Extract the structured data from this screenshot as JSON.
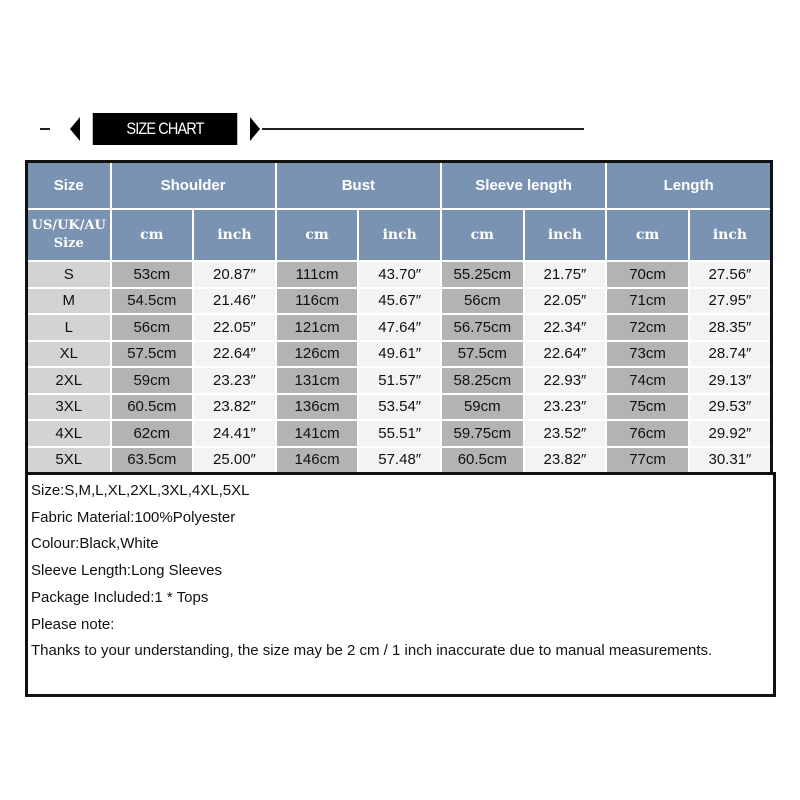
{
  "banner": {
    "title": "SIZE CHART"
  },
  "header": {
    "groups": [
      "Size",
      "Shoulder",
      "Bust",
      "Sleeve length",
      "Length"
    ],
    "size_sub": "US/UK/AU Size",
    "unit_cm": "cm",
    "unit_inch": "inch"
  },
  "rows": [
    [
      "S",
      "53cm",
      "20.87″",
      "111cm",
      "43.70″",
      "55.25cm",
      "21.75″",
      "70cm",
      "27.56″"
    ],
    [
      "M",
      "54.5cm",
      "21.46″",
      "116cm",
      "45.67″",
      "56cm",
      "22.05″",
      "71cm",
      "27.95″"
    ],
    [
      "L",
      "56cm",
      "22.05″",
      "121cm",
      "47.64″",
      "56.75cm",
      "22.34″",
      "72cm",
      "28.35″"
    ],
    [
      "XL",
      "57.5cm",
      "22.64″",
      "126cm",
      "49.61″",
      "57.5cm",
      "22.64″",
      "73cm",
      "28.74″"
    ],
    [
      "2XL",
      "59cm",
      "23.23″",
      "131cm",
      "51.57″",
      "58.25cm",
      "22.93″",
      "74cm",
      "29.13″"
    ],
    [
      "3XL",
      "60.5cm",
      "23.82″",
      "136cm",
      "53.54″",
      "59cm",
      "23.23″",
      "75cm",
      "29.53″"
    ],
    [
      "4XL",
      "62cm",
      "24.41″",
      "141cm",
      "55.51″",
      "59.75cm",
      "23.52″",
      "76cm",
      "29.92″"
    ],
    [
      "5XL",
      "63.5cm",
      "25.00″",
      "146cm",
      "57.48″",
      "60.5cm",
      "23.82″",
      "77cm",
      "30.31″"
    ]
  ],
  "notes": [
    "Size:S,M,L,XL,2XL,3XL,4XL,5XL",
    "Fabric Material:100%Polyester",
    "Colour:Black,White",
    "Sleeve Length:Long Sleeves",
    "Package Included:1 * Tops",
    "Please note:",
    "Thanks to your understanding, the size may be 2 cm / 1 inch inaccurate due to manual measurements."
  ],
  "colors": {
    "header": "#7b93b3",
    "size_col": "#d3d3d3",
    "cm_col": "#b5b3b1",
    "inch_col": "#f3f3f3"
  }
}
